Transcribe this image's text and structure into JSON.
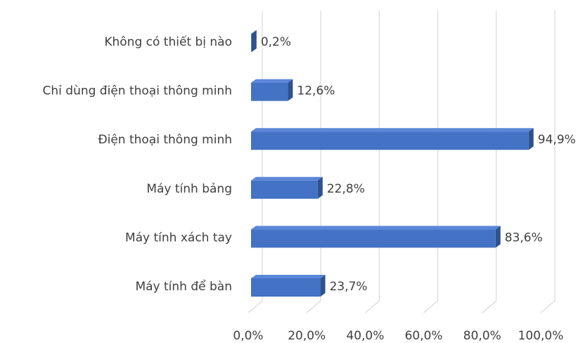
{
  "chart_data": {
    "type": "bar3d_horizontal",
    "categories": [
      "Không có thiết bị nào",
      "Chỉ dùng điện thoại thông minh",
      "Điện thoại thông minh",
      "Máy tính bảng",
      "Máy tính xách tay",
      "Máy tính để bàn"
    ],
    "values": [
      0.2,
      12.6,
      94.9,
      22.8,
      83.6,
      23.7
    ],
    "value_labels": [
      "0,2%",
      "12,6%",
      "94,9%",
      "22,8%",
      "83,6%",
      "23,7%"
    ],
    "color": "#4472c4",
    "xlim": [
      0,
      100
    ],
    "xticks": [
      {
        "value": 0,
        "label": "0,0%"
      },
      {
        "value": 20,
        "label": "20,0%"
      },
      {
        "value": 40,
        "label": "40,0%"
      },
      {
        "value": 60,
        "label": "60,0%"
      },
      {
        "value": 80,
        "label": "80,0%"
      },
      {
        "value": 100,
        "label": "100,0%"
      }
    ],
    "grid": true
  }
}
